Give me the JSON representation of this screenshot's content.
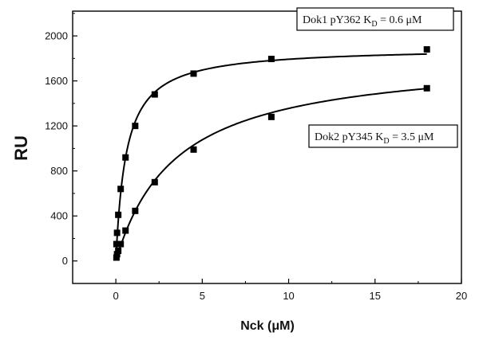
{
  "chart_data": {
    "type": "scatter",
    "xlabel": "Nck (μM)",
    "ylabel": "RU",
    "xlim": [
      -2.5,
      20
    ],
    "ylim": [
      -200,
      2220
    ],
    "xticks": [
      0,
      5,
      10,
      15,
      20
    ],
    "yticks": [
      0,
      400,
      800,
      1200,
      1600,
      2000
    ],
    "xtick_labels": [
      "0",
      "5",
      "10",
      "15",
      "20"
    ],
    "ytick_labels": [
      "0",
      "400",
      "800",
      "1200",
      "1600",
      "2000"
    ],
    "grid": false,
    "series": [
      {
        "name": "Dok1 pY362",
        "label_prefix": "Dok1 pY362 K",
        "label_sub": "D",
        "label_suffix": " = 0.6 μM",
        "kd": 0.6,
        "bmax": 1900,
        "x": [
          0.035,
          0.07,
          0.14,
          0.28,
          0.56,
          1.12,
          2.25,
          4.5,
          9.0,
          18.0
        ],
        "y": [
          150,
          250,
          410,
          640,
          920,
          1200,
          1480,
          1665,
          1795,
          1880
        ],
        "color": "#000000"
      },
      {
        "name": "Dok2 pY345",
        "label_prefix": "Dok2 pY345 K",
        "label_sub": "D",
        "label_suffix": " = 3.5 μM",
        "kd": 3.5,
        "bmax": 1830,
        "x": [
          0.035,
          0.07,
          0.14,
          0.28,
          0.56,
          1.12,
          2.25,
          4.5,
          9.0,
          18.0
        ],
        "y": [
          30,
          60,
          90,
          150,
          270,
          445,
          700,
          990,
          1280,
          1535
        ],
        "color": "#000000"
      }
    ]
  }
}
